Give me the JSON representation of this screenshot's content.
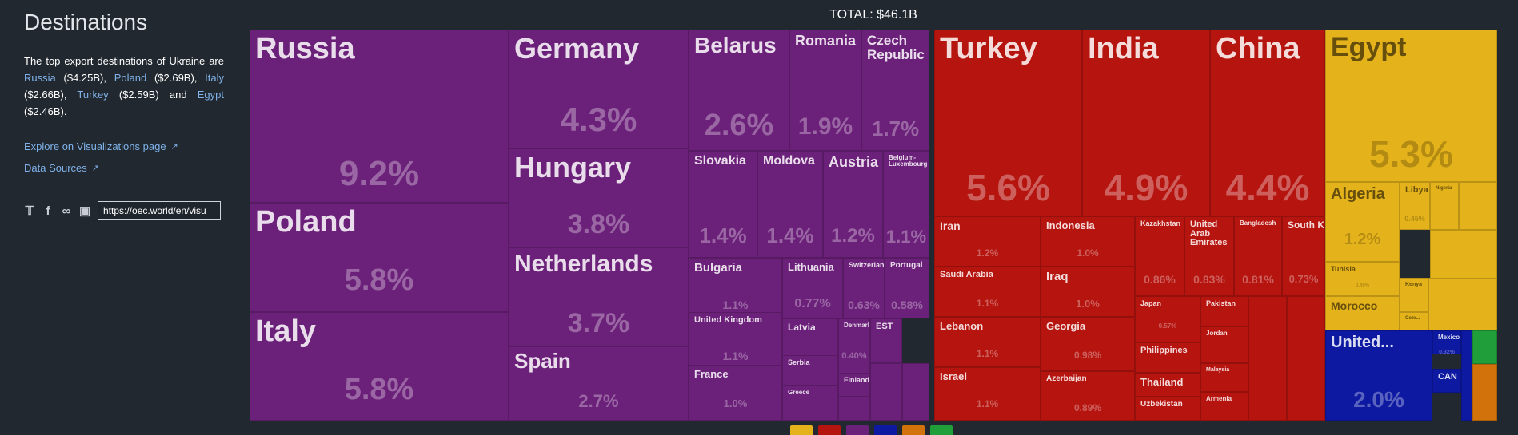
{
  "sidebar": {
    "title": "Destinations",
    "desc": {
      "p1": "The top export destinations of Ukraine are ",
      "c1": "Russia",
      "v1": " ($4.25B), ",
      "c2": "Poland",
      "v2": " ($2.69B), ",
      "c3": "Italy",
      "v3": " ($2.66B), ",
      "c4": "Turkey",
      "v4": " ($2.59B) and ",
      "c5": "Egypt",
      "v5": " ($2.46B)."
    },
    "explore_link": "Explore on Visualizations page",
    "sources_link": "Data Sources",
    "share_url": "https://oec.world/en/visu"
  },
  "icons": [
    "twitter-icon",
    "facebook-icon",
    "link-icon",
    "image-icon",
    "external-link-icon"
  ],
  "colors": {
    "europe": "#6b2079",
    "asia": "#b5140f",
    "africa": "#e4b31b",
    "north_america": "#0d19a1",
    "south_america": "#d2720a",
    "oceania": "#1f9e3a"
  },
  "chart_data": {
    "type": "treemap",
    "title": "TOTAL: $46.1B",
    "tiles": [
      {
        "name": "Russia",
        "pct": "9.2%",
        "group": "europe"
      },
      {
        "name": "Poland",
        "pct": "5.8%",
        "group": "europe"
      },
      {
        "name": "Italy",
        "pct": "5.8%",
        "group": "europe"
      },
      {
        "name": "Germany",
        "pct": "4.3%",
        "group": "europe"
      },
      {
        "name": "Hungary",
        "pct": "3.8%",
        "group": "europe"
      },
      {
        "name": "Netherlands",
        "pct": "3.7%",
        "group": "europe"
      },
      {
        "name": "Spain",
        "pct": "2.7%",
        "group": "europe"
      },
      {
        "name": "Belarus",
        "pct": "2.6%",
        "group": "europe"
      },
      {
        "name": "Romania",
        "pct": "1.9%",
        "group": "europe"
      },
      {
        "name": "Czech Republic",
        "pct": "1.7%",
        "group": "europe"
      },
      {
        "name": "Slovakia",
        "pct": "1.4%",
        "group": "europe"
      },
      {
        "name": "Moldova",
        "pct": "1.4%",
        "group": "europe"
      },
      {
        "name": "Austria",
        "pct": "1.2%",
        "group": "europe"
      },
      {
        "name": "Belgium-Luxembourg",
        "pct": "1.1%",
        "group": "europe"
      },
      {
        "name": "Bulgaria",
        "pct": "1.1%",
        "group": "europe"
      },
      {
        "name": "Lithuania",
        "pct": "0.77%",
        "group": "europe"
      },
      {
        "name": "Switzerland",
        "pct": "0.63%",
        "group": "europe"
      },
      {
        "name": "Portugal",
        "pct": "0.58%",
        "group": "europe"
      },
      {
        "name": "United Kingdom",
        "pct": "1.1%",
        "group": "europe"
      },
      {
        "name": "Latvia",
        "pct": "",
        "group": "europe"
      },
      {
        "name": "Denmark",
        "pct": "0.40%",
        "group": "europe"
      },
      {
        "name": "EST",
        "pct": "",
        "group": "europe"
      },
      {
        "name": "Serbia",
        "pct": "",
        "group": "europe"
      },
      {
        "name": "Finland",
        "pct": "",
        "group": "europe"
      },
      {
        "name": "France",
        "pct": "1.0%",
        "group": "europe"
      },
      {
        "name": "Greece",
        "pct": "",
        "group": "europe"
      },
      {
        "name": "Turkey",
        "pct": "5.6%",
        "group": "asia"
      },
      {
        "name": "India",
        "pct": "4.9%",
        "group": "asia"
      },
      {
        "name": "China",
        "pct": "4.4%",
        "group": "asia"
      },
      {
        "name": "Iran",
        "pct": "1.2%",
        "group": "asia"
      },
      {
        "name": "Saudi Arabia",
        "pct": "1.1%",
        "group": "asia"
      },
      {
        "name": "Lebanon",
        "pct": "1.1%",
        "group": "asia"
      },
      {
        "name": "Israel",
        "pct": "1.1%",
        "group": "asia"
      },
      {
        "name": "Indonesia",
        "pct": "1.0%",
        "group": "asia"
      },
      {
        "name": "Iraq",
        "pct": "1.0%",
        "group": "asia"
      },
      {
        "name": "Georgia",
        "pct": "0.98%",
        "group": "asia"
      },
      {
        "name": "Azerbaijan",
        "pct": "0.89%",
        "group": "asia"
      },
      {
        "name": "Kazakhstan",
        "pct": "0.86%",
        "group": "asia"
      },
      {
        "name": "United Arab Emirates",
        "pct": "0.83%",
        "group": "asia"
      },
      {
        "name": "Bangladesh",
        "pct": "0.81%",
        "group": "asia"
      },
      {
        "name": "South Korea",
        "pct": "0.73%",
        "group": "asia"
      },
      {
        "name": "Japan",
        "pct": "0.57%",
        "group": "asia"
      },
      {
        "name": "Pakistan",
        "pct": "",
        "group": "asia"
      },
      {
        "name": "Philippines",
        "pct": "",
        "group": "asia"
      },
      {
        "name": "Jordan",
        "pct": "",
        "group": "asia"
      },
      {
        "name": "Thailand",
        "pct": "",
        "group": "asia"
      },
      {
        "name": "Malaysia",
        "pct": "",
        "group": "asia"
      },
      {
        "name": "Uzbekistan",
        "pct": "",
        "group": "asia"
      },
      {
        "name": "Armenia",
        "pct": "",
        "group": "asia"
      },
      {
        "name": "Egypt",
        "pct": "5.3%",
        "group": "africa"
      },
      {
        "name": "Algeria",
        "pct": "1.2%",
        "group": "africa"
      },
      {
        "name": "Libya",
        "pct": "0.45%",
        "group": "africa"
      },
      {
        "name": "Nigeria",
        "pct": "",
        "group": "africa"
      },
      {
        "name": "Tunisia",
        "pct": "0.49%",
        "group": "africa"
      },
      {
        "name": "Kenya",
        "pct": "",
        "group": "africa"
      },
      {
        "name": "Morocco",
        "pct": "",
        "group": "africa"
      },
      {
        "name": "Cote...",
        "pct": "",
        "group": "africa"
      },
      {
        "name": "United...",
        "pct": "2.0%",
        "group": "north_america"
      },
      {
        "name": "Mexico",
        "pct": "0.32%",
        "group": "north_america"
      },
      {
        "name": "CAN",
        "pct": "",
        "group": "north_america"
      }
    ]
  }
}
